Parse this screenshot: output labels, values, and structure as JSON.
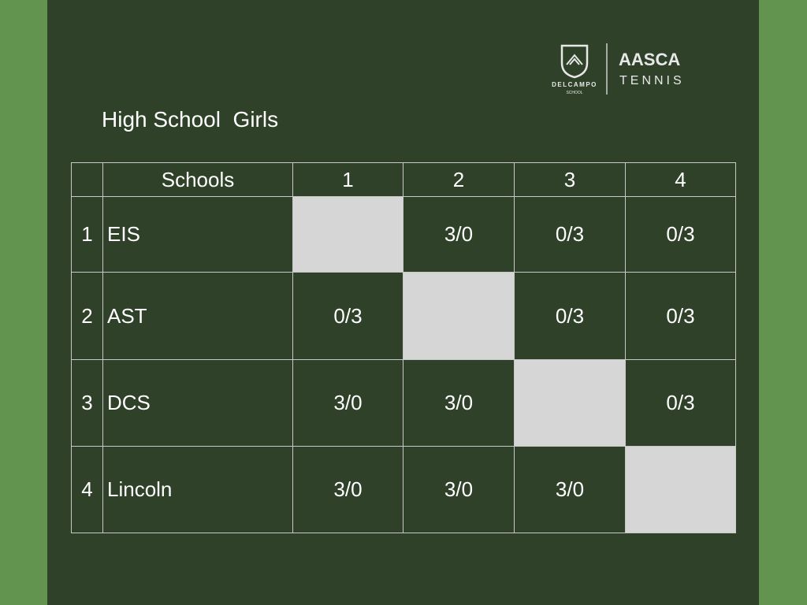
{
  "logo": {
    "school_name": "DELCAMPO",
    "school_word": "SCHOOL",
    "brand": "AASCA",
    "sport": "TENNIS"
  },
  "title": "High School  Girls",
  "table": {
    "header": {
      "schools": "Schools",
      "columns": [
        "1",
        "2",
        "3",
        "4"
      ]
    },
    "rows": [
      {
        "number": "1",
        "school": "EIS",
        "results": [
          null,
          "3/0",
          "0/3",
          "0/3"
        ]
      },
      {
        "number": "2",
        "school": "AST",
        "results": [
          "0/3",
          null,
          "0/3",
          "0/3"
        ]
      },
      {
        "number": "3",
        "school": "DCS",
        "results": [
          "3/0",
          "3/0",
          null,
          "0/3"
        ]
      },
      {
        "number": "4",
        "school": "Lincoln",
        "results": [
          "3/0",
          "3/0",
          "3/0",
          null
        ]
      }
    ]
  }
}
